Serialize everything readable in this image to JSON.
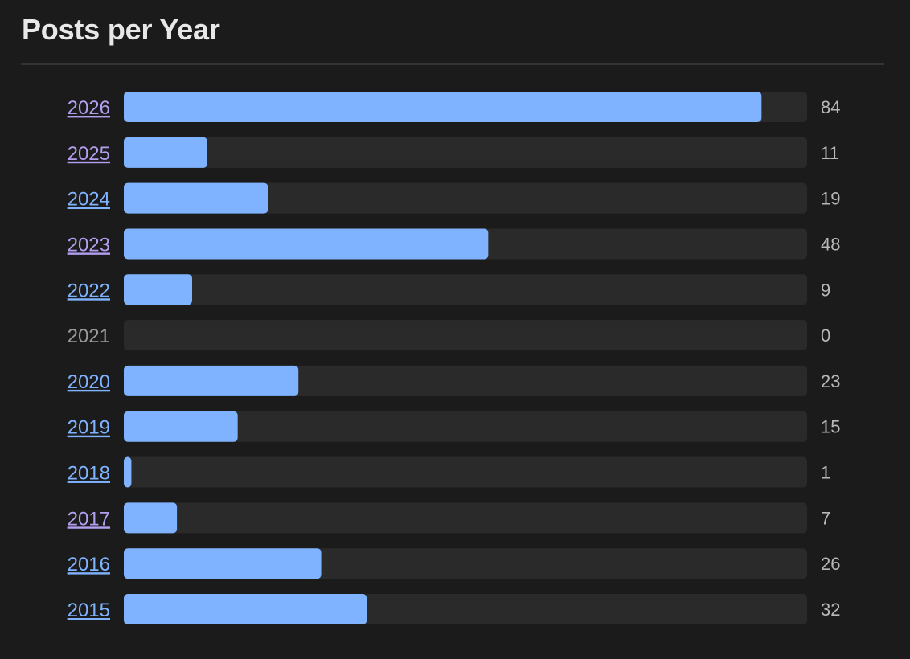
{
  "title": "Posts per Year",
  "colors": {
    "background": "#1b1b1b",
    "track": "#2a2a2a",
    "bar": "#7fb3ff",
    "link": "#7fb3ff",
    "link_visited": "#b39ef0",
    "muted": "#9a9a9a",
    "count": "#b8b8b8"
  },
  "chart_data": {
    "type": "bar",
    "orientation": "horizontal",
    "title": "Posts per Year",
    "categories": [
      "2026",
      "2025",
      "2024",
      "2023",
      "2022",
      "2021",
      "2020",
      "2019",
      "2018",
      "2017",
      "2016",
      "2015"
    ],
    "values": [
      84,
      11,
      19,
      48,
      9,
      0,
      23,
      15,
      1,
      7,
      26,
      32
    ],
    "visited": [
      true,
      true,
      false,
      true,
      false,
      false,
      false,
      false,
      false,
      true,
      false,
      false
    ],
    "xlim": [
      0,
      90
    ],
    "grid": false,
    "legend": "none"
  }
}
